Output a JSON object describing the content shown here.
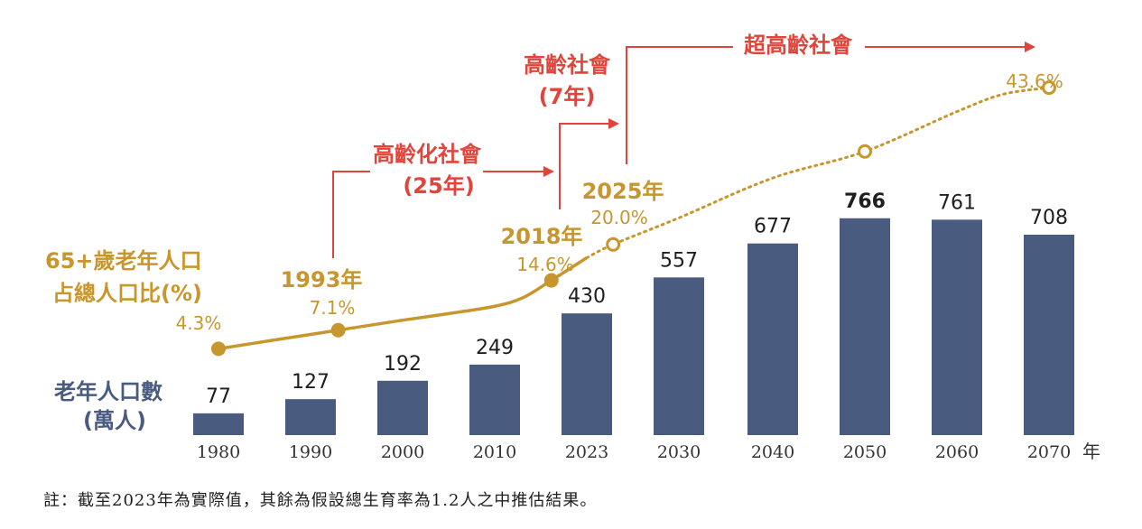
{
  "chart_data": {
    "type": "bar",
    "categories": [
      "1980",
      "1990",
      "2000",
      "2010",
      "2023",
      "2030",
      "2040",
      "2050",
      "2060",
      "2070"
    ],
    "x_unit": "年",
    "bar_series": {
      "name": "老年人口數 (萬人)",
      "values": [
        77,
        127,
        192,
        249,
        430,
        557,
        677,
        766,
        761,
        708
      ],
      "color": "#4a5b80"
    },
    "line_series": {
      "name": "65+歲老年人口 占總人口比(%)",
      "color": "#c8962e",
      "markers": [
        {
          "year_label": "",
          "pct": "4.3%",
          "value": 4.3,
          "x": 1980
        },
        {
          "year_label": "1993年",
          "pct": "7.1%",
          "value": 7.1,
          "x": 1993
        },
        {
          "year_label": "2018年",
          "pct": "14.6%",
          "value": 14.6,
          "x": 2018
        },
        {
          "year_label": "2025年",
          "pct": "20.0%",
          "value": 20.0,
          "x": 2025
        },
        {
          "year_label": "",
          "pct": "",
          "value": 34.0,
          "x": 2050
        },
        {
          "year_label": "",
          "pct": "43.6%",
          "value": 43.6,
          "x": 2070
        }
      ],
      "solid_until": 2024,
      "dotted_from": 2024
    },
    "stages": [
      {
        "name": "高齡化社會",
        "years": "(25年)"
      },
      {
        "name": "高齡社會",
        "years": "(7年)"
      },
      {
        "name": "超高齡社會",
        "years": ""
      }
    ],
    "legend_line_label_1": "65+歲老年人口",
    "legend_line_label_2": "占總人口比(%)",
    "legend_bar_label_1": "老年人口數",
    "legend_bar_label_2": "(萬人)"
  },
  "footnote": "註：截至2023年為實際值，其餘為假設總生育率為1.2人之中推估結果。",
  "colors": {
    "bar": "#4a5b80",
    "line": "#c8962e",
    "stage": "#e0443a"
  }
}
